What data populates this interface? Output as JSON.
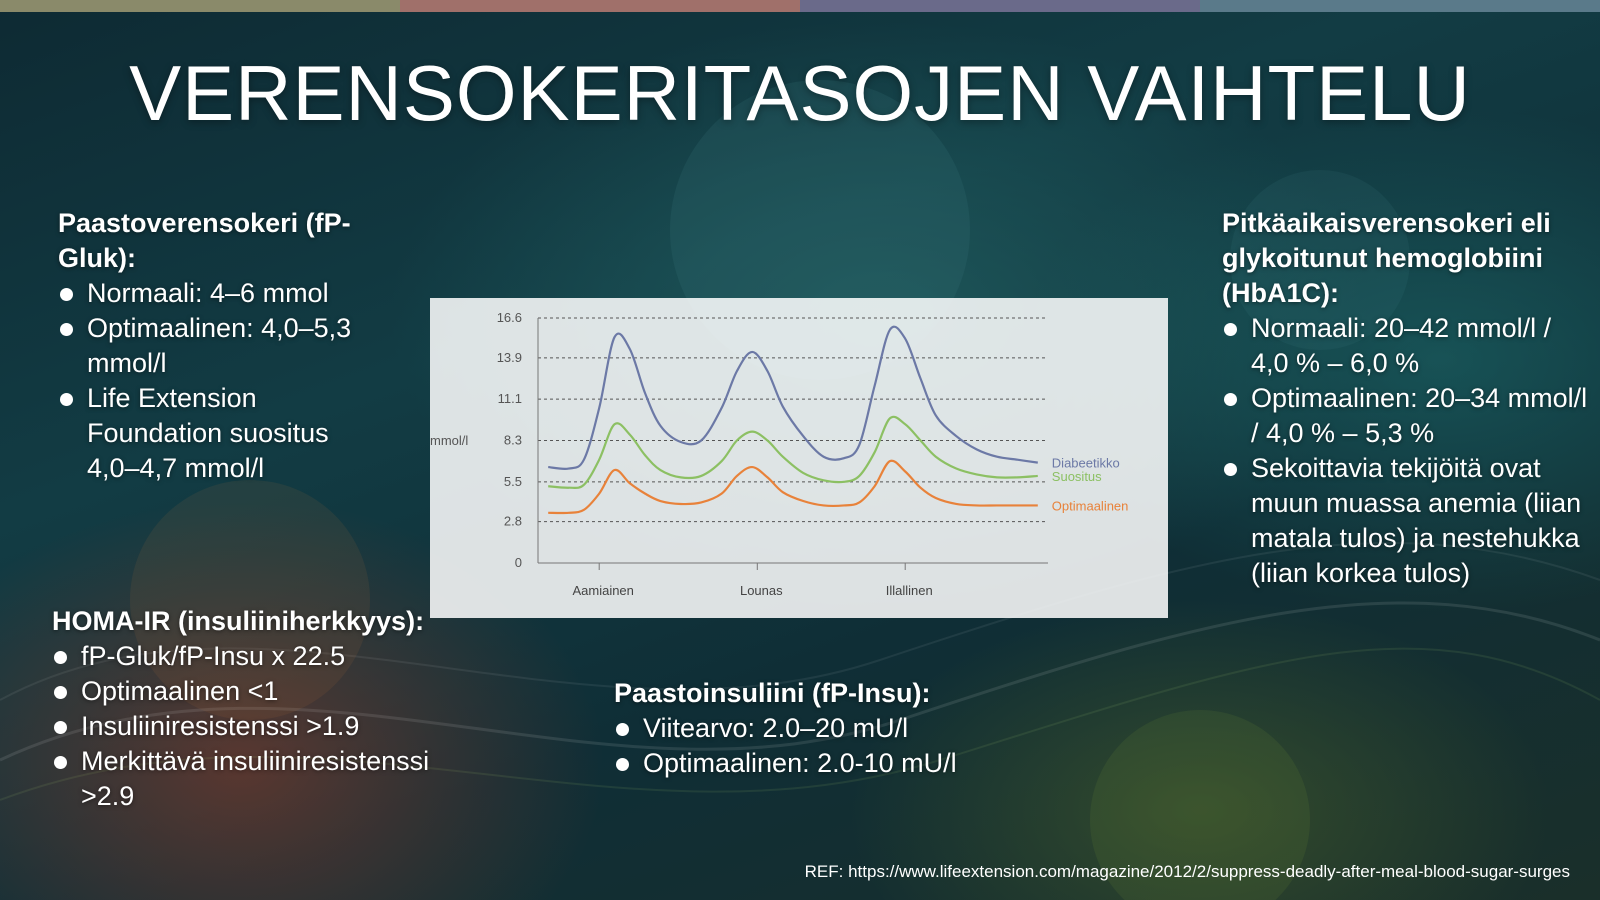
{
  "title": "VERENSOKERITASOJEN VAIHTELU",
  "colors": {
    "diabeetikko": "#6c79a6",
    "suositus": "#8cc063",
    "optimaalinen": "#e8823a",
    "top_strip": [
      "#8a8a6a",
      "#a0706a",
      "#6a6a8a",
      "#5a7a8a"
    ]
  },
  "blocks": {
    "fp_gluk": {
      "heading": "Paastoverensokeri (fP-Gluk):",
      "items": [
        "Normaali: 4–6 mmol",
        "Optimaalinen: 4,0–5,3 mmol/l",
        "Life Extension Foundation suositus 4,0–4,7 mmol/l"
      ]
    },
    "hba1c": {
      "heading": "Pitkäaikaisverensokeri eli glykoitunut hemoglobiini (HbA1C):",
      "items": [
        "Normaali: 20–42 mmol/l / 4,0 % – 6,0 %",
        "Optimaalinen: 20–34 mmol/l / 4,0 % – 5,3 %",
        "Sekoittavia tekijöitä ovat muun muassa anemia (liian matala tulos) ja nestehukka (liian korkea tulos)"
      ]
    },
    "homa": {
      "heading": "HOMA-IR (insuliiniherkkyys):",
      "items": [
        "fP-Gluk/fP-Insu x 22.5",
        "Optimaalinen <1",
        "Insuliiniresistenssi >1.9",
        "Merkittävä insuliiniresistenssi >2.9"
      ]
    },
    "fp_insu": {
      "heading": "Paastoinsuliini (fP-Insu):",
      "items": [
        "Viitearvo: 2.0–20 mU/l",
        "Optimaalinen: 2.0-10 mU/l"
      ]
    }
  },
  "ref": "REF: https://www.lifeextension.com/magazine/2012/2/suppress-deadly-after-meal-blood-sugar-surges",
  "chart_data": {
    "type": "line",
    "title": "",
    "xlabel": "",
    "ylabel": "mmol/l",
    "ylim": [
      0,
      16.6
    ],
    "xlim": [
      0,
      1
    ],
    "yticks": [
      "0",
      "2.8",
      "5.5",
      "8.3",
      "11.1",
      "13.9",
      "16.6"
    ],
    "ytick_values": [
      0,
      2.8,
      5.5,
      8.3,
      11.1,
      13.9,
      16.6
    ],
    "grid": "horizontal dashed",
    "legend": "right, at line ends",
    "categories": [
      "Aamiainen",
      "Lounas",
      "Illallinen"
    ],
    "category_x": [
      0.12,
      0.43,
      0.72
    ],
    "series": [
      {
        "name": "Diabeetikko",
        "color_key": "diabeetikko",
        "x": [
          0.02,
          0.06,
          0.09,
          0.12,
          0.15,
          0.18,
          0.21,
          0.24,
          0.28,
          0.32,
          0.36,
          0.39,
          0.42,
          0.45,
          0.48,
          0.52,
          0.56,
          0.6,
          0.63,
          0.66,
          0.69,
          0.72,
          0.75,
          0.78,
          0.82,
          0.86,
          0.9,
          0.94,
          0.98
        ],
        "y": [
          6.5,
          6.4,
          7.0,
          10.5,
          15.3,
          14.5,
          11.5,
          9.3,
          8.2,
          8.3,
          10.5,
          13.0,
          14.3,
          13.0,
          10.6,
          8.6,
          7.2,
          7.1,
          8.0,
          12.0,
          15.8,
          15.2,
          12.5,
          10.0,
          8.6,
          7.7,
          7.2,
          7.0,
          6.8
        ]
      },
      {
        "name": "Suositus",
        "color_key": "suositus",
        "x": [
          0.02,
          0.06,
          0.09,
          0.12,
          0.15,
          0.18,
          0.21,
          0.24,
          0.28,
          0.32,
          0.36,
          0.39,
          0.42,
          0.45,
          0.48,
          0.52,
          0.56,
          0.6,
          0.63,
          0.66,
          0.69,
          0.72,
          0.75,
          0.78,
          0.82,
          0.86,
          0.9,
          0.94,
          0.98
        ],
        "y": [
          5.2,
          5.1,
          5.3,
          7.0,
          9.4,
          8.7,
          7.3,
          6.3,
          5.8,
          5.9,
          6.9,
          8.3,
          8.9,
          8.3,
          7.2,
          6.1,
          5.6,
          5.5,
          5.9,
          7.5,
          9.8,
          9.4,
          8.3,
          7.2,
          6.4,
          6.0,
          5.8,
          5.8,
          5.9
        ]
      },
      {
        "name": "Optimaalinen",
        "color_key": "optimaalinen",
        "x": [
          0.02,
          0.06,
          0.09,
          0.12,
          0.15,
          0.18,
          0.21,
          0.24,
          0.28,
          0.32,
          0.36,
          0.39,
          0.42,
          0.45,
          0.48,
          0.52,
          0.56,
          0.6,
          0.63,
          0.66,
          0.69,
          0.72,
          0.75,
          0.78,
          0.82,
          0.86,
          0.9,
          0.94,
          0.98
        ],
        "y": [
          3.4,
          3.4,
          3.6,
          4.7,
          6.3,
          5.4,
          4.7,
          4.2,
          4.0,
          4.1,
          4.7,
          5.9,
          6.5,
          5.8,
          4.8,
          4.2,
          3.9,
          3.9,
          4.1,
          5.2,
          6.9,
          6.2,
          5.1,
          4.4,
          4.0,
          3.9,
          3.9,
          3.9,
          3.9
        ]
      }
    ]
  }
}
